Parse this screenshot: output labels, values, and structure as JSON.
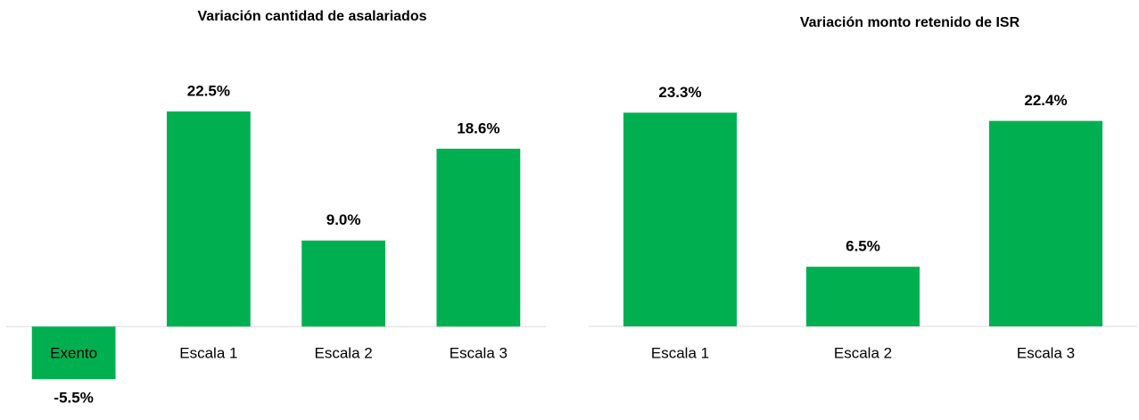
{
  "chart_data": [
    {
      "type": "bar",
      "title": "Variación cantidad de asalariados",
      "categories": [
        "Exento",
        "Escala 1",
        "Escala 2",
        "Escala 3"
      ],
      "values": [
        -5.5,
        22.5,
        9.0,
        18.6
      ],
      "value_labels": [
        "-5.5%",
        "22.5%",
        "9.0%",
        "18.6%"
      ],
      "color": "#00b050",
      "ylim": [
        -8,
        28
      ]
    },
    {
      "type": "bar",
      "title": "Variación monto retenido de ISR",
      "categories": [
        "Escala 1",
        "Escala 2",
        "Escala 3"
      ],
      "values": [
        23.3,
        6.5,
        22.4
      ],
      "value_labels": [
        "23.3%",
        "6.5%",
        "22.4%"
      ],
      "color": "#00b050",
      "ylim": [
        0,
        28
      ]
    }
  ]
}
